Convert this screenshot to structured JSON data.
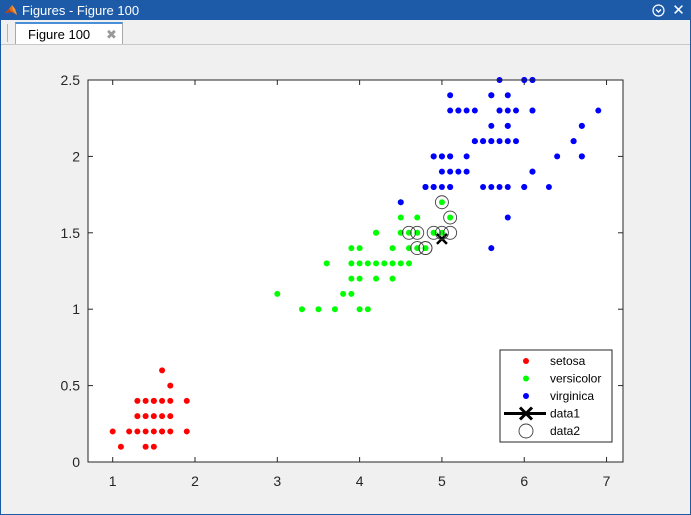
{
  "window": {
    "title": "Figures - Figure 100",
    "tab_label": "Figure 100"
  },
  "colors": {
    "setosa": "#ff0000",
    "versicolor": "#00ff00",
    "virginica": "#0000ff",
    "data1": "#000000",
    "data2": "#404040",
    "titlebar": "#1d5ba8"
  },
  "icons": {
    "app": "matlab-icon",
    "menu": "chevron-down-icon",
    "close_window": "close-icon",
    "close_tab": "close-icon"
  },
  "chart_data": {
    "type": "scatter",
    "xlim": [
      0.7,
      7.2
    ],
    "ylim": [
      0,
      2.5
    ],
    "xticks": [
      1,
      2,
      3,
      4,
      5,
      6,
      7
    ],
    "yticks": [
      0,
      0.5,
      1,
      1.5,
      2,
      2.5
    ],
    "xtick_labels": [
      "1",
      "2",
      "3",
      "4",
      "5",
      "6",
      "7"
    ],
    "ytick_labels": [
      "0",
      "0.5",
      "1",
      "1.5",
      "2",
      "2.5"
    ],
    "grid": false,
    "legend_position": "bottom-right",
    "series": [
      {
        "name": "setosa",
        "marker": "dot",
        "x": [
          1.1,
          1.0,
          1.2,
          1.3,
          1.4,
          1.5,
          1.6,
          1.7,
          1.9,
          1.3,
          1.4,
          1.5,
          1.6,
          1.7,
          1.3,
          1.4,
          1.5,
          1.6,
          1.7,
          1.9,
          1.4,
          1.6,
          1.5,
          1.7,
          1.6,
          1.5
        ],
        "y": [
          0.1,
          0.2,
          0.2,
          0.2,
          0.2,
          0.2,
          0.2,
          0.2,
          0.2,
          0.3,
          0.3,
          0.3,
          0.3,
          0.3,
          0.4,
          0.4,
          0.4,
          0.4,
          0.4,
          0.4,
          0.1,
          0.6,
          0.1,
          0.5,
          0.2,
          0.4
        ]
      },
      {
        "name": "versicolor",
        "marker": "dot",
        "x": [
          3.0,
          3.3,
          3.5,
          3.7,
          4.0,
          4.1,
          3.8,
          3.9,
          3.9,
          4.0,
          4.2,
          4.4,
          3.6,
          3.9,
          4.0,
          4.1,
          4.2,
          4.3,
          4.4,
          4.5,
          4.6,
          4.0,
          3.9,
          4.2,
          4.4,
          4.5,
          4.6,
          4.7,
          4.8,
          4.9,
          4.5,
          4.7,
          4.9,
          5.0,
          5.1,
          4.5,
          4.8,
          4.2,
          4.5,
          4.6,
          4.7,
          5.0
        ],
        "y": [
          1.1,
          1.0,
          1.0,
          1.0,
          1.0,
          1.0,
          1.1,
          1.1,
          1.2,
          1.2,
          1.2,
          1.2,
          1.3,
          1.3,
          1.3,
          1.3,
          1.3,
          1.3,
          1.3,
          1.3,
          1.3,
          1.4,
          1.4,
          1.5,
          1.4,
          1.5,
          1.4,
          1.4,
          1.4,
          1.5,
          1.5,
          1.5,
          1.5,
          1.7,
          1.6,
          1.6,
          1.8,
          1.5,
          1.7,
          1.5,
          1.6,
          1.5
        ]
      },
      {
        "name": "virginica",
        "marker": "dot",
        "x": [
          4.5,
          4.8,
          4.9,
          4.9,
          5.0,
          5.1,
          5.1,
          5.2,
          5.3,
          5.6,
          5.6,
          5.7,
          5.8,
          6.0,
          6.1,
          6.3,
          6.6,
          6.7,
          4.8,
          4.9,
          5.0,
          5.1,
          5.3,
          5.5,
          5.6,
          5.7,
          5.8,
          5.9,
          6.1,
          4.9,
          5.0,
          5.1,
          5.2,
          5.4,
          5.5,
          5.6,
          5.8,
          6.0,
          6.4,
          6.6,
          5.1,
          5.4,
          5.6,
          5.8,
          5.9,
          6.1,
          6.7,
          5.1,
          5.2,
          5.3,
          5.4,
          5.7,
          5.8,
          6.1,
          6.9,
          5.6,
          5.7,
          5.8,
          6.0,
          6.1,
          5.0,
          5.5,
          6.7,
          6.7,
          5.6,
          5.1,
          5.7,
          6.0,
          6.1,
          5.8
        ],
        "y": [
          1.7,
          1.8,
          1.8,
          1.8,
          1.8,
          1.8,
          1.9,
          1.9,
          1.9,
          1.8,
          1.4,
          1.8,
          1.6,
          1.8,
          1.9,
          1.8,
          2.1,
          2.0,
          1.8,
          2.0,
          2.0,
          2.0,
          2.0,
          1.8,
          2.2,
          2.1,
          2.2,
          2.1,
          2.3,
          2.0,
          2.0,
          2.3,
          2.3,
          2.1,
          2.1,
          2.1,
          2.2,
          2.5,
          2.0,
          2.1,
          2.4,
          2.3,
          2.4,
          1.8,
          2.3,
          2.3,
          2.2,
          2.0,
          2.3,
          2.3,
          2.1,
          2.3,
          2.4,
          2.5,
          2.3,
          2.4,
          2.5,
          2.1,
          1.8,
          1.9,
          1.9,
          2.1,
          2.0,
          2.2,
          2.1,
          1.8,
          2.3,
          2.5,
          2.5,
          2.3
        ]
      },
      {
        "name": "data1",
        "marker": "x",
        "x": [
          5.0
        ],
        "y": [
          1.46
        ]
      },
      {
        "name": "data2",
        "marker": "circle",
        "x": [
          4.7,
          4.8,
          4.9,
          5.0,
          5.0,
          5.1,
          5.1,
          4.7,
          4.6,
          4.8
        ],
        "y": [
          1.5,
          1.4,
          1.5,
          1.5,
          1.7,
          1.6,
          1.5,
          1.4,
          1.5,
          1.4
        ]
      }
    ]
  }
}
